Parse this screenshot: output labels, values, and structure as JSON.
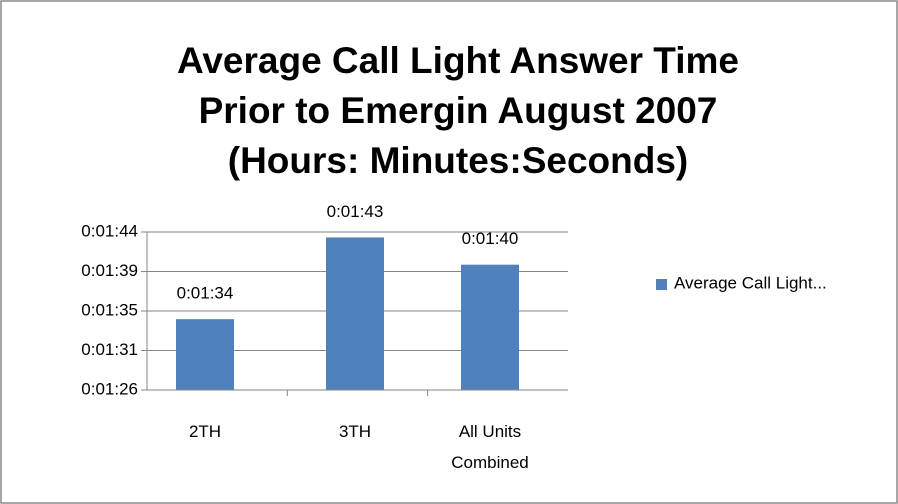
{
  "chart_data": {
    "type": "bar",
    "title": [
      "Average Call Light Answer Time",
      "Prior to Emergin  August 2007",
      "(Hours: Minutes:Seconds)"
    ],
    "categories": [
      "2TH",
      "3TH",
      "All Units Combined"
    ],
    "series": [
      {
        "name": "Average Call Light...",
        "color": "#4f81bd",
        "values": [
          94,
          103,
          100
        ],
        "value_labels": [
          "0:01:34",
          "0:01:43",
          "0:01:40"
        ]
      }
    ],
    "ylim": [
      86.2,
      103.6
    ],
    "yticks": [
      {
        "value": 86.2,
        "label": "0:01:26"
      },
      {
        "value": 90.55,
        "label": "0:01:31"
      },
      {
        "value": 94.9,
        "label": "0:01:35"
      },
      {
        "value": 99.25,
        "label": "0:01:39"
      },
      {
        "value": 103.6,
        "label": "0:01:44"
      }
    ],
    "grid": true,
    "legend": "right"
  }
}
